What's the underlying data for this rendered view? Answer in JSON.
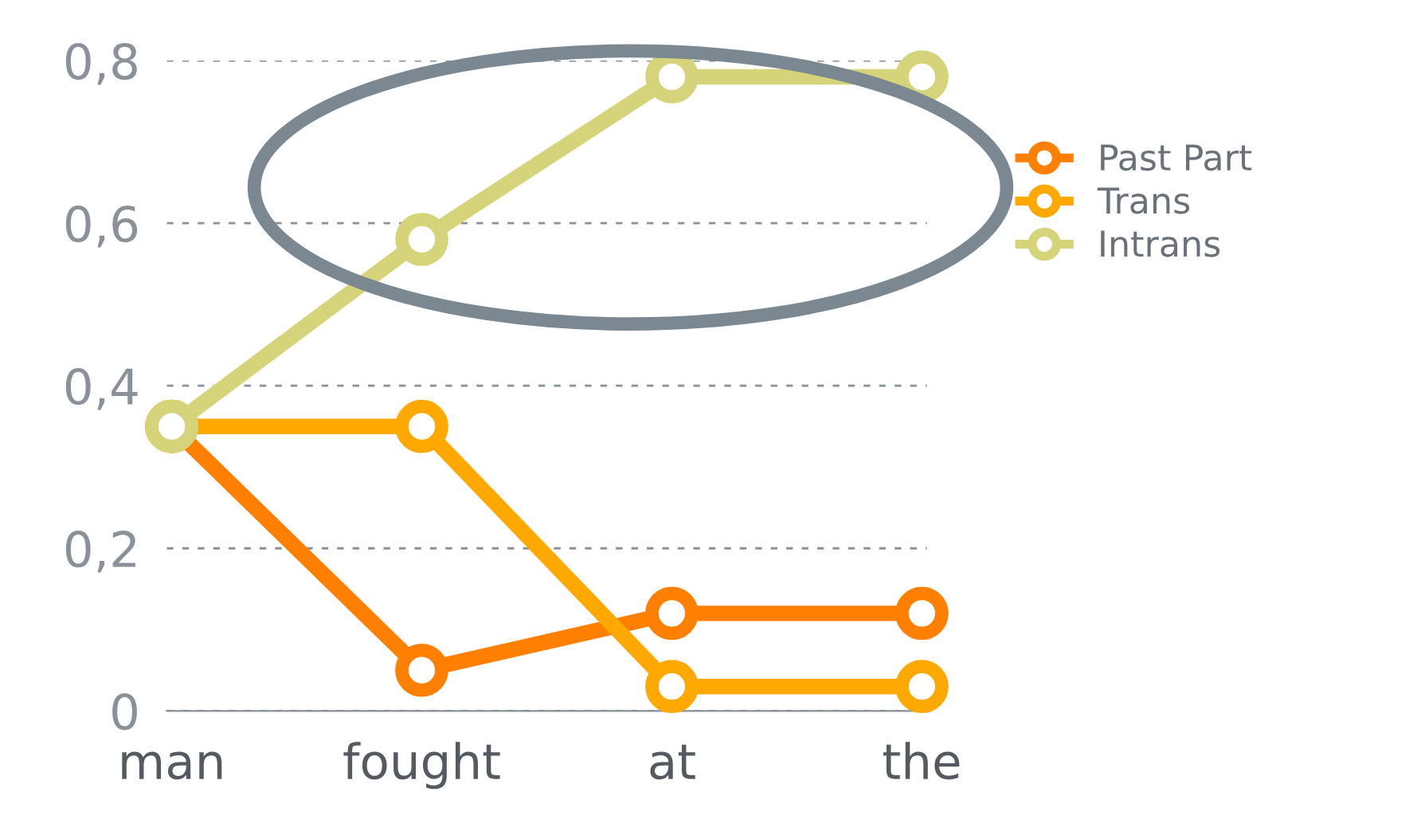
{
  "chart_data": {
    "type": "line",
    "categories": [
      "man",
      "fought",
      "at",
      "the"
    ],
    "series": [
      {
        "name": "Past Part",
        "color": "#ff7f00",
        "values": [
          0.35,
          0.05,
          0.12,
          0.12
        ]
      },
      {
        "name": "Trans",
        "color": "#ffa800",
        "values": [
          0.35,
          0.35,
          0.03,
          0.03
        ]
      },
      {
        "name": "Intrans",
        "color": "#d5d47a",
        "values": [
          0.35,
          0.58,
          0.78,
          0.78
        ]
      }
    ],
    "ylim": [
      0,
      0.8
    ],
    "yticks": [
      0,
      {
        "value": 0.2,
        "label": "0,2"
      },
      {
        "value": 0.4,
        "label": "0,4"
      },
      {
        "value": 0.6,
        "label": "0,6"
      },
      {
        "value": 0.8,
        "label": "0,8"
      }
    ],
    "grid": "y",
    "legend": "right",
    "marker": "circle",
    "line_style": "solid"
  }
}
